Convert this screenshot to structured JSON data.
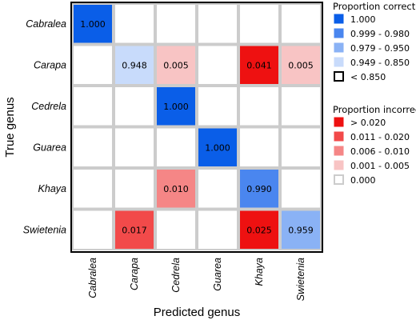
{
  "chart_data": {
    "type": "heatmap",
    "xlabel": "Predicted genus",
    "ylabel": "True genus",
    "row_labels": [
      "Cabralea",
      "Carapa",
      "Cedrela",
      "Guarea",
      "Khaya",
      "Swietenia"
    ],
    "col_labels": [
      "Cabralea",
      "Carapa",
      "Cedrela",
      "Guarea",
      "Khaya",
      "Swietenia"
    ],
    "values": [
      [
        1.0,
        null,
        null,
        null,
        null,
        null
      ],
      [
        null,
        0.948,
        0.005,
        null,
        0.041,
        0.005
      ],
      [
        null,
        null,
        1.0,
        null,
        null,
        null
      ],
      [
        null,
        null,
        null,
        1.0,
        null,
        null
      ],
      [
        null,
        null,
        0.01,
        null,
        0.99,
        null
      ],
      [
        null,
        0.017,
        null,
        null,
        0.025,
        0.959
      ]
    ],
    "value_labels": [
      [
        "1.000",
        "",
        "",
        "",
        "",
        ""
      ],
      [
        "",
        "0.948",
        "0.005",
        "",
        "0.041",
        "0.005"
      ],
      [
        "",
        "",
        "1.000",
        "",
        "",
        ""
      ],
      [
        "",
        "",
        "",
        "1.000",
        "",
        ""
      ],
      [
        "",
        "",
        "0.010",
        "",
        "0.990",
        ""
      ],
      [
        "",
        "0.017",
        "",
        "",
        "0.025",
        "0.959"
      ]
    ],
    "legends": [
      {
        "title": "Proportion correct",
        "items": [
          {
            "label": "1.000",
            "color": "#0a5ee8"
          },
          {
            "label": "0.999 - 0.980",
            "color": "#4a86ef"
          },
          {
            "label": "0.979 - 0.950",
            "color": "#8ab2f5"
          },
          {
            "label": "0.949 -  0.850",
            "color": "#c8dbfb"
          },
          {
            "label": "< 0.850",
            "color": "#ffffff",
            "border": "#000000"
          }
        ]
      },
      {
        "title": "Proportion incorrect",
        "items": [
          {
            "label": "> 0.020",
            "color": "#ee1111"
          },
          {
            "label": "0.011 - 0.020",
            "color": "#f24a4a"
          },
          {
            "label": "0.006 - 0.010",
            "color": "#f58686"
          },
          {
            "label": "0.001 - 0.005",
            "color": "#f8c4c4"
          },
          {
            "label": "0.000",
            "color": "#ffffff",
            "border": "#cccccc"
          }
        ]
      }
    ],
    "legend_position": "right",
    "grid_color": "#cccccc"
  }
}
